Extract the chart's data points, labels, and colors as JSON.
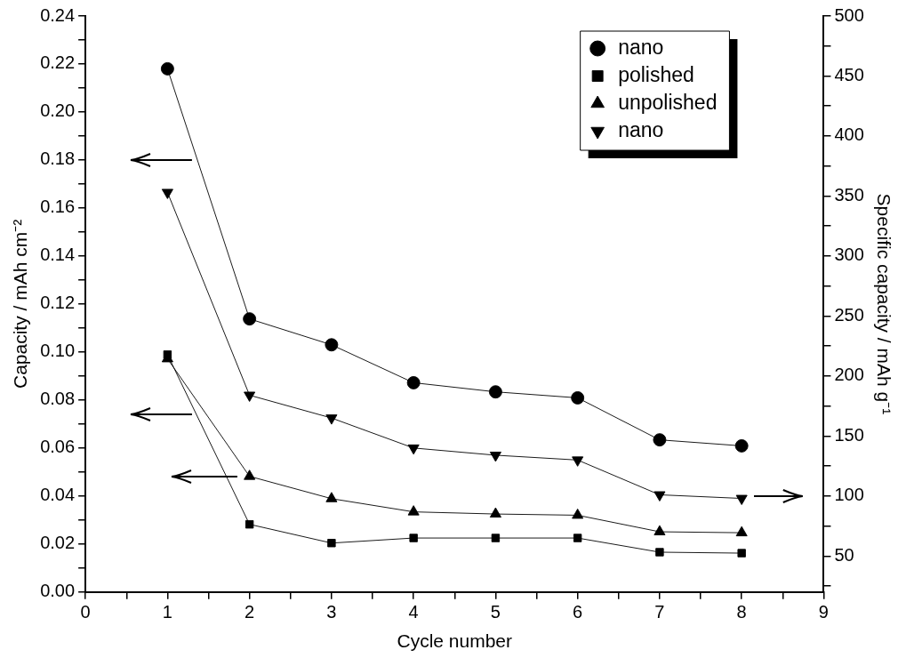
{
  "chart_data": {
    "type": "line",
    "xlabel": "Cycle number",
    "ylabel": "Capacity / mAh cm⁻²",
    "y2label": "Specific capacity / mAh g⁻¹",
    "x": [
      1,
      2,
      3,
      4,
      5,
      6,
      7,
      8
    ],
    "series": [
      {
        "name": "nano",
        "color": "#000000",
        "marker": "circle",
        "values": [
          0.218,
          0.1138,
          0.103,
          0.0872,
          0.0834,
          0.0809,
          0.0634,
          0.0609
        ]
      },
      {
        "name": "polished",
        "color": "#000000",
        "marker": "square",
        "values": [
          0.0989,
          0.0282,
          0.0204,
          0.0225,
          0.0225,
          0.0225,
          0.0166,
          0.0162
        ]
      },
      {
        "name": "unpolished",
        "color": "#000000",
        "marker": "triangle",
        "values": [
          0.0972,
          0.0482,
          0.0389,
          0.0334,
          0.0325,
          0.032,
          0.0251,
          0.0247
        ]
      },
      {
        "name": "nano",
        "color": "#000000",
        "marker": "triangle-down",
        "axis": "y2",
        "values": [
          353,
          184,
          165,
          140,
          134,
          130,
          101,
          98
        ]
      }
    ],
    "xlim": [
      0,
      9
    ],
    "xticks": [
      0,
      {
        "value": 0.5,
        "label": null
      },
      1,
      {
        "value": 1.5,
        "label": null
      },
      2,
      {
        "value": 2.5,
        "label": null
      },
      3,
      {
        "value": 3.5,
        "label": null
      },
      4,
      {
        "value": 4.5,
        "label": null
      },
      5,
      {
        "value": 5.5,
        "label": null
      },
      6,
      {
        "value": 6.5,
        "label": null
      },
      7,
      {
        "value": 7.5,
        "label": null
      },
      8,
      {
        "value": 8.5,
        "label": null
      },
      9
    ],
    "ylim": [
      0,
      0.24
    ],
    "yticks": [
      {
        "value": 0,
        "label": "0.00"
      },
      {
        "value": 0.01,
        "label": null
      },
      {
        "value": 0.02,
        "label": "0.02"
      },
      {
        "value": 0.03,
        "label": null
      },
      {
        "value": 0.04,
        "label": "0.04"
      },
      {
        "value": 0.05,
        "label": null
      },
      {
        "value": 0.06,
        "label": "0.06"
      },
      {
        "value": 0.07,
        "label": null
      },
      {
        "value": 0.08,
        "label": "0.08"
      },
      {
        "value": 0.09,
        "label": null
      },
      {
        "value": 0.1,
        "label": "0.10"
      },
      {
        "value": 0.11,
        "label": null
      },
      {
        "value": 0.12,
        "label": "0.12"
      },
      {
        "value": 0.13,
        "label": null
      },
      {
        "value": 0.14,
        "label": "0.14"
      },
      {
        "value": 0.15,
        "label": null
      },
      {
        "value": 0.16,
        "label": "0.16"
      },
      {
        "value": 0.17,
        "label": null
      },
      {
        "value": 0.18,
        "label": "0.18"
      },
      {
        "value": 0.19,
        "label": null
      },
      {
        "value": 0.2,
        "label": "0.20"
      },
      {
        "value": 0.21,
        "label": null
      },
      {
        "value": 0.22,
        "label": "0.22"
      },
      {
        "value": 0.23,
        "label": null
      },
      {
        "value": 0.24,
        "label": "0.24"
      }
    ],
    "y2lim": [
      20,
      500
    ],
    "y2ticks": [
      {
        "value": 25,
        "label": null
      },
      50,
      {
        "value": 75,
        "label": null
      },
      100,
      {
        "value": 125,
        "label": null
      },
      150,
      {
        "value": 175,
        "label": null
      },
      200,
      {
        "value": 225,
        "label": null
      },
      250,
      {
        "value": 275,
        "label": null
      },
      300,
      {
        "value": 325,
        "label": null
      },
      350,
      {
        "value": 375,
        "label": null
      },
      400,
      {
        "value": 425,
        "label": null
      },
      450,
      {
        "value": 475,
        "label": null
      },
      500
    ],
    "legend": "top right",
    "grid": false,
    "line_style": "solid"
  }
}
